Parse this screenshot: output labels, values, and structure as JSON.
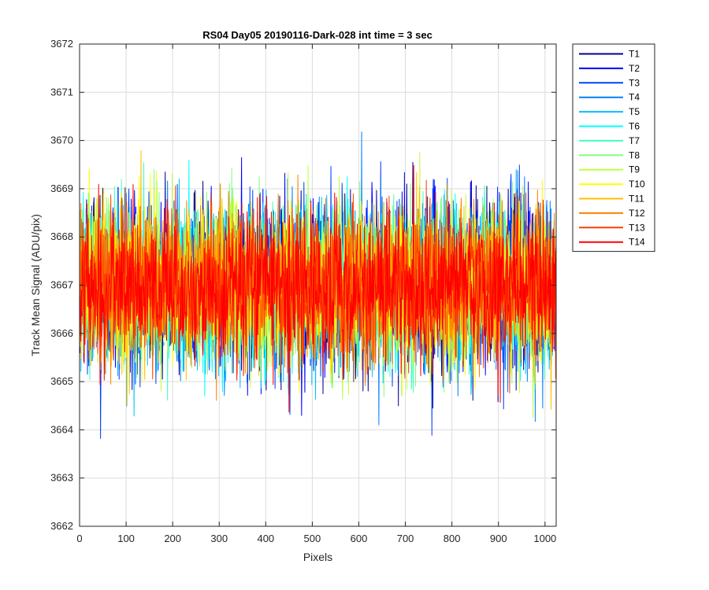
{
  "chart_data": {
    "type": "line",
    "title": "RS04 Day05 20190116-Dark-028 int time = 3 sec",
    "xlabel": "Pixels",
    "ylabel": "Track Mean Signal (ADU/pix)",
    "xlim": [
      0,
      1024
    ],
    "ylim": [
      3662,
      3672
    ],
    "xticks": [
      0,
      100,
      200,
      300,
      400,
      500,
      600,
      700,
      800,
      900,
      1000
    ],
    "yticks": [
      3662,
      3663,
      3664,
      3665,
      3666,
      3667,
      3668,
      3669,
      3670,
      3671,
      3672
    ],
    "grid": true,
    "legend_location": "outside-right-top",
    "x_range_points": [
      1,
      1024
    ],
    "series_mean": 3667.0,
    "series": [
      {
        "name": "T1",
        "color": "#00008f",
        "mean": 3667.0,
        "std": 0.85,
        "min": 3664.4,
        "max": 3669.7
      },
      {
        "name": "T2",
        "color": "#0000ff",
        "mean": 3667.0,
        "std": 0.85,
        "min": 3663.0,
        "max": 3670.0
      },
      {
        "name": "T3",
        "color": "#0040ff",
        "mean": 3667.0,
        "std": 0.85,
        "min": 3663.7,
        "max": 3669.6
      },
      {
        "name": "T4",
        "color": "#0080ff",
        "mean": 3667.0,
        "std": 0.85,
        "min": 3663.2,
        "max": 3670.6
      },
      {
        "name": "T5",
        "color": "#00bfff",
        "mean": 3667.0,
        "std": 0.85,
        "min": 3664.0,
        "max": 3670.4
      },
      {
        "name": "T6",
        "color": "#00ffff",
        "mean": 3667.0,
        "std": 0.8,
        "min": 3664.4,
        "max": 3670.1
      },
      {
        "name": "T7",
        "color": "#40ffbf",
        "mean": 3667.0,
        "std": 0.8,
        "min": 3664.5,
        "max": 3670.3
      },
      {
        "name": "T8",
        "color": "#80ff80",
        "mean": 3667.0,
        "std": 0.8,
        "min": 3664.6,
        "max": 3670.0
      },
      {
        "name": "T9",
        "color": "#bfff40",
        "mean": 3667.0,
        "std": 0.8,
        "min": 3663.1,
        "max": 3671.2
      },
      {
        "name": "T10",
        "color": "#ffff00",
        "mean": 3667.0,
        "std": 0.8,
        "min": 3664.5,
        "max": 3671.1
      },
      {
        "name": "T11",
        "color": "#ffbf00",
        "mean": 3667.0,
        "std": 0.75,
        "min": 3664.2,
        "max": 3670.0
      },
      {
        "name": "T12",
        "color": "#ff8000",
        "mean": 3667.0,
        "std": 0.75,
        "min": 3663.9,
        "max": 3669.9
      },
      {
        "name": "T13",
        "color": "#ff4000",
        "mean": 3667.0,
        "std": 0.75,
        "min": 3664.1,
        "max": 3669.8
      },
      {
        "name": "T14",
        "color": "#ff0000",
        "mean": 3667.0,
        "std": 0.75,
        "min": 3664.0,
        "max": 3670.7
      }
    ]
  }
}
